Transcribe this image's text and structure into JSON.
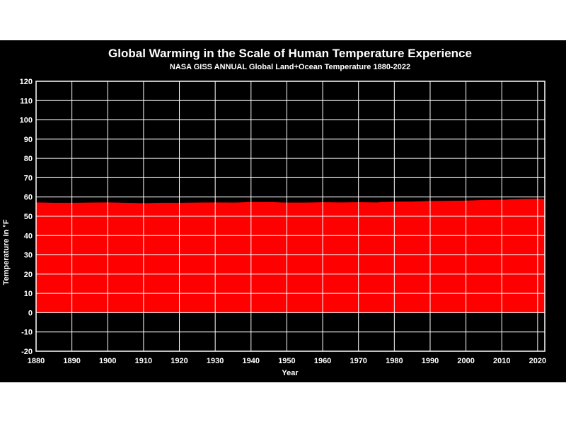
{
  "chart_data": {
    "type": "area",
    "title": "Global Warming in the Scale of Human Temperature Experience",
    "subtitle": "NASA GISS ANNUAL Global Land+Ocean Temperature 1880-2022",
    "xlabel": "Year",
    "ylabel": "Temperature in °F",
    "xlim": [
      1880,
      2022
    ],
    "ylim": [
      -20,
      120
    ],
    "x_ticks": [
      1880,
      1890,
      1900,
      1910,
      1920,
      1930,
      1940,
      1950,
      1960,
      1970,
      1980,
      1990,
      2000,
      2010,
      2020
    ],
    "y_ticks": [
      -20,
      -10,
      0,
      10,
      20,
      30,
      40,
      50,
      60,
      70,
      80,
      90,
      100,
      110,
      120
    ],
    "grid": true,
    "colors": {
      "fill": "#ff0000",
      "background": "#000000",
      "grid": "#ffffff",
      "text": "#ffffff"
    },
    "series": [
      {
        "x": [
          1880,
          1885,
          1890,
          1895,
          1900,
          1905,
          1910,
          1915,
          1920,
          1925,
          1930,
          1935,
          1940,
          1945,
          1950,
          1955,
          1960,
          1965,
          1970,
          1975,
          1980,
          1985,
          1990,
          1995,
          2000,
          2005,
          2010,
          2015,
          2020,
          2022
        ],
        "values": [
          57.1,
          56.9,
          56.9,
          57.0,
          57.1,
          56.9,
          56.7,
          56.9,
          56.9,
          57.0,
          57.1,
          57.0,
          57.3,
          57.3,
          57.0,
          57.0,
          57.2,
          57.1,
          57.2,
          57.1,
          57.5,
          57.5,
          57.8,
          57.9,
          58.0,
          58.4,
          58.5,
          58.8,
          59.0,
          58.9
        ]
      }
    ]
  }
}
